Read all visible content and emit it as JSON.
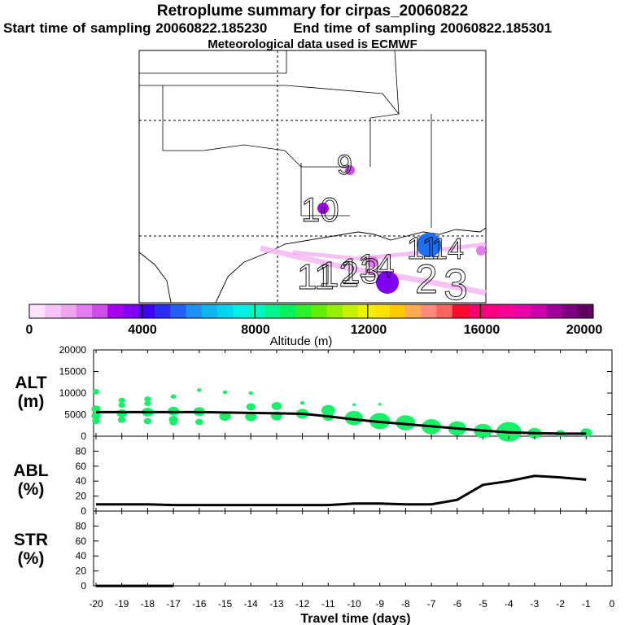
{
  "header": {
    "title": "Retroplume summary for cirpas_20060822",
    "start_label": "Start time of sampling 20060822.185230",
    "end_label": "End time of sampling 20060822.185301",
    "met_label": "Meteorological data used is ECMWF"
  },
  "map": {
    "day_labels": [
      "9",
      "10",
      "11",
      "12",
      "13",
      "14",
      "11",
      "14",
      "2",
      "3"
    ]
  },
  "colorbar": {
    "tick_values": [
      "0",
      "4000",
      "8000",
      "12000",
      "16000",
      "20000"
    ],
    "label": "Altitude (m)",
    "min": 0,
    "max": 20000,
    "colors": [
      "#fde0fb",
      "#f6c4f6",
      "#f0a6ef",
      "#e47ded",
      "#cd4deb",
      "#a600f0",
      "#7f00f4",
      "#3f00f9",
      "#2a2df8",
      "#2361f5",
      "#1f8ff2",
      "#11b5f0",
      "#00d5ee",
      "#00f0e6",
      "#00f7bf",
      "#00f58c",
      "#00f25d",
      "#2ff02e",
      "#64ef00",
      "#98ef00",
      "#c7f300",
      "#eef400",
      "#fde400",
      "#fdc900",
      "#fdaa55",
      "#fc8a7d",
      "#f8655e",
      "#fa0a2c",
      "#fb006a",
      "#fc0083",
      "#f80098",
      "#e900a9",
      "#cd00ae",
      "#a00097",
      "#7c0082",
      "#620062"
    ]
  },
  "chart_data": [
    {
      "type": "line",
      "panel": "ALT",
      "ylabel": "ALT\n(m)",
      "ylim": [
        0,
        20000
      ],
      "yticks": [
        0,
        5000,
        10000,
        15000,
        20000
      ],
      "x": [
        -20,
        -19,
        -18,
        -17,
        -16,
        -15,
        -14,
        -13,
        -12,
        -11,
        -10,
        -9,
        -8,
        -7,
        -6,
        -5,
        -4,
        -3,
        -2,
        -1
      ],
      "values": [
        5600,
        5600,
        5600,
        5600,
        5600,
        5500,
        5400,
        5300,
        5200,
        4600,
        3900,
        3300,
        2800,
        2300,
        1800,
        1300,
        900,
        700,
        600,
        600
      ],
      "scatter": [
        {
          "x": -20,
          "y": 10300,
          "r": 0.6
        },
        {
          "x": -20,
          "y": 6300,
          "r": 0.8
        },
        {
          "x": -20,
          "y": 4700,
          "r": 0.8
        },
        {
          "x": -20,
          "y": 3500,
          "r": 0.7
        },
        {
          "x": -19,
          "y": 8300,
          "r": 0.6
        },
        {
          "x": -19,
          "y": 7200,
          "r": 0.6
        },
        {
          "x": -19,
          "y": 5300,
          "r": 0.9
        },
        {
          "x": -19,
          "y": 3800,
          "r": 0.7
        },
        {
          "x": -18,
          "y": 8600,
          "r": 0.6
        },
        {
          "x": -18,
          "y": 7600,
          "r": 0.6
        },
        {
          "x": -18,
          "y": 5600,
          "r": 1.0
        },
        {
          "x": -18,
          "y": 3500,
          "r": 0.7
        },
        {
          "x": -17,
          "y": 9200,
          "r": 0.5
        },
        {
          "x": -17,
          "y": 5800,
          "r": 1.0
        },
        {
          "x": -17,
          "y": 3900,
          "r": 0.8
        },
        {
          "x": -17,
          "y": 3200,
          "r": 0.7
        },
        {
          "x": -16,
          "y": 10700,
          "r": 0.4
        },
        {
          "x": -16,
          "y": 5700,
          "r": 1.0
        },
        {
          "x": -16,
          "y": 3300,
          "r": 0.7
        },
        {
          "x": -15,
          "y": 10200,
          "r": 0.4
        },
        {
          "x": -15,
          "y": 4600,
          "r": 1.0
        },
        {
          "x": -14,
          "y": 10000,
          "r": 0.4
        },
        {
          "x": -14,
          "y": 6800,
          "r": 0.8
        },
        {
          "x": -14,
          "y": 4500,
          "r": 1.0
        },
        {
          "x": -13,
          "y": 7000,
          "r": 0.9
        },
        {
          "x": -13,
          "y": 4700,
          "r": 1.0
        },
        {
          "x": -12,
          "y": 7700,
          "r": 0.4
        },
        {
          "x": -12,
          "y": 5200,
          "r": 1.1
        },
        {
          "x": -11,
          "y": 6000,
          "r": 1.2
        },
        {
          "x": -11,
          "y": 4600,
          "r": 1.0
        },
        {
          "x": -10,
          "y": 4200,
          "r": 1.6
        },
        {
          "x": -10,
          "y": 7300,
          "r": 0.3
        },
        {
          "x": -9,
          "y": 3500,
          "r": 1.8
        },
        {
          "x": -9,
          "y": 7400,
          "r": 0.3
        },
        {
          "x": -8,
          "y": 3100,
          "r": 1.7
        },
        {
          "x": -7,
          "y": 2200,
          "r": 1.7
        },
        {
          "x": -6,
          "y": 1800,
          "r": 1.6
        },
        {
          "x": -5,
          "y": 1200,
          "r": 1.6
        },
        {
          "x": -4,
          "y": 1000,
          "r": 2.2
        },
        {
          "x": -3,
          "y": 700,
          "r": 1.2
        },
        {
          "x": -2,
          "y": 600,
          "r": 0.8
        },
        {
          "x": -1,
          "y": 800,
          "r": 1.0
        }
      ]
    },
    {
      "type": "line",
      "panel": "ABL",
      "ylabel": "ABL\n(%)",
      "ylim": [
        0,
        100
      ],
      "yticks": [
        0,
        20,
        40,
        60,
        80
      ],
      "x": [
        -20,
        -19,
        -18,
        -17,
        -16,
        -15,
        -14,
        -13,
        -12,
        -11,
        -10,
        -9,
        -8,
        -7,
        -6,
        -5,
        -4,
        -3,
        -2,
        -1
      ],
      "values": [
        9,
        9,
        9,
        8,
        8,
        8,
        8,
        8,
        8,
        8,
        10,
        10,
        9,
        9,
        15,
        35,
        40,
        47,
        45,
        42
      ]
    },
    {
      "type": "line",
      "panel": "STR",
      "ylabel": "STR\n(%)",
      "ylim": [
        0,
        100
      ],
      "yticks": [
        0,
        20,
        40,
        60,
        80
      ],
      "x": [
        -20,
        -17
      ],
      "values": [
        0,
        0
      ]
    }
  ],
  "xaxis": {
    "label": "Travel time (days)",
    "ticks": [
      -20,
      -19,
      -18,
      -17,
      -16,
      -15,
      -14,
      -13,
      -12,
      -11,
      -10,
      -9,
      -8,
      -7,
      -6,
      -5,
      -4,
      -3,
      -2,
      -1,
      0
    ],
    "tick_labels": [
      "-20",
      "-19",
      "-18",
      "-17",
      "-16",
      "-15",
      "-14",
      "-13",
      "-12",
      "-11",
      "-10",
      "-9",
      "-8",
      "-7",
      "-6",
      "-5",
      "-4",
      "-3",
      "-2",
      "-1",
      "0"
    ]
  }
}
